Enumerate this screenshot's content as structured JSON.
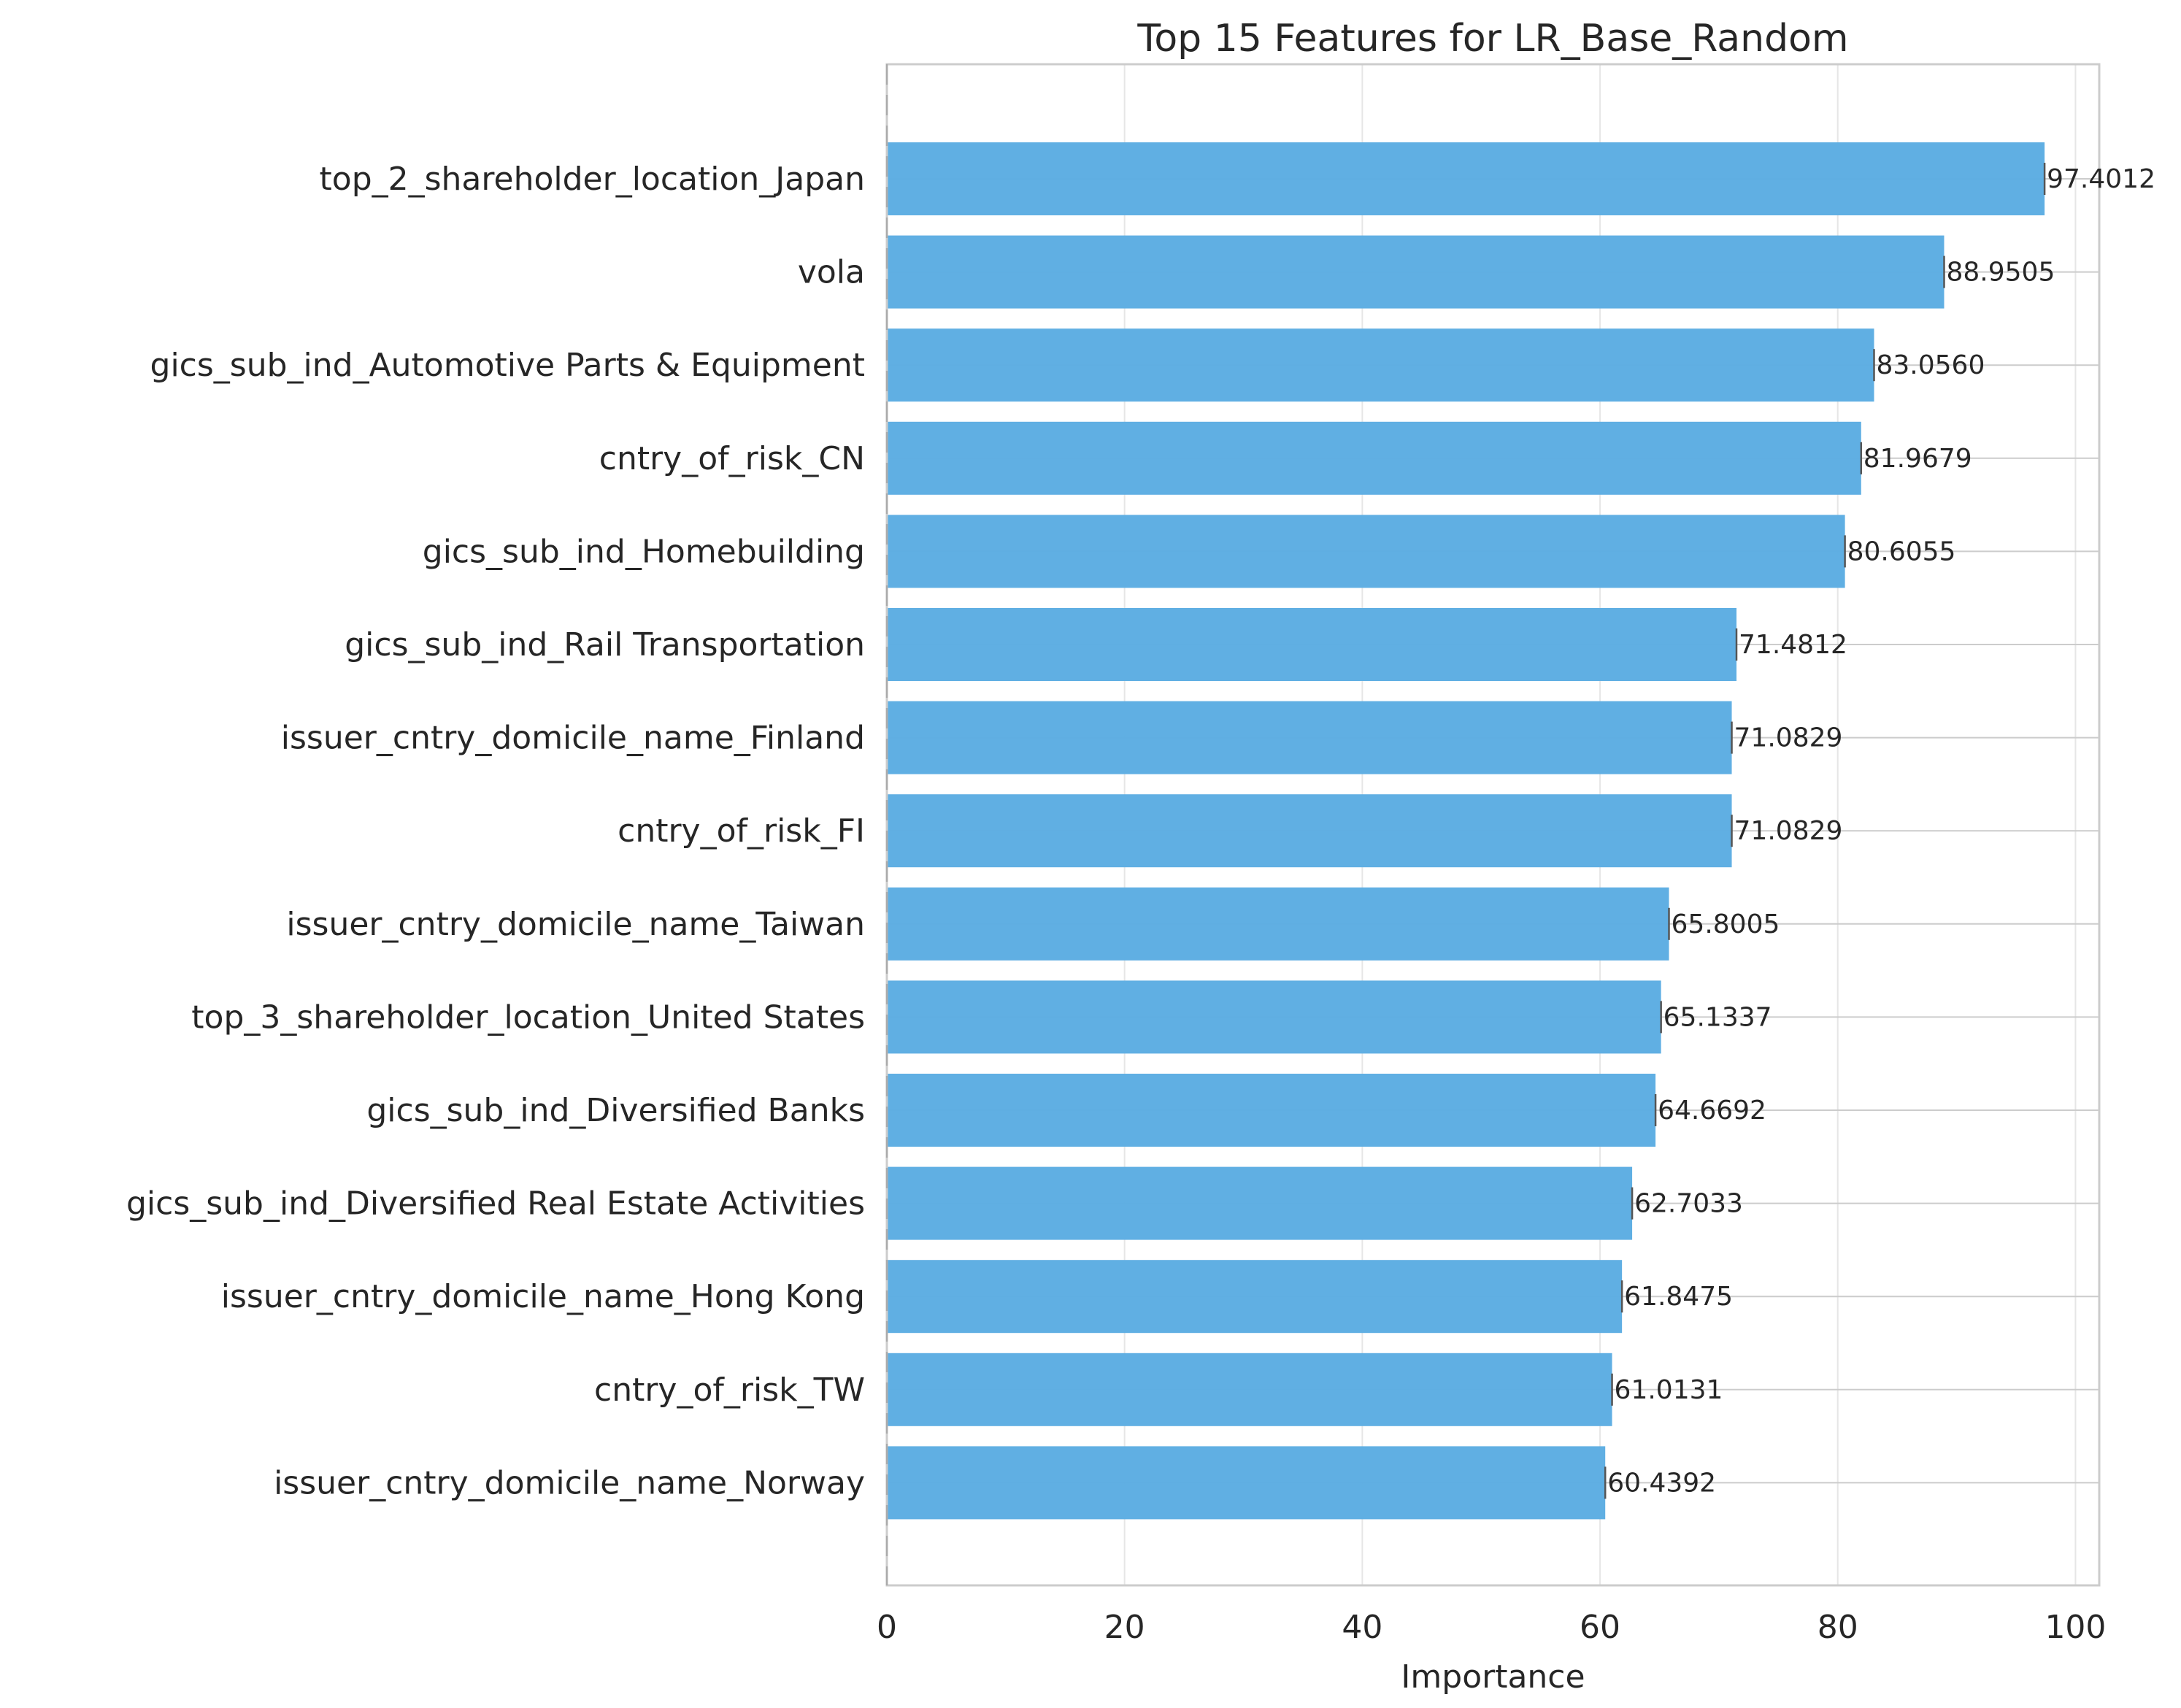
{
  "chart_data": {
    "type": "bar",
    "orientation": "horizontal",
    "title": "Top 15 Features for LR_Base_Random",
    "xlabel": "Importance",
    "ylabel": "",
    "xlim": [
      0,
      102
    ],
    "xticks": [
      0,
      20,
      40,
      60,
      80,
      100
    ],
    "grid": true,
    "bar_color": "#5DADE2",
    "categories": [
      "top_2_shareholder_location_Japan",
      "vola",
      "gics_sub_ind_Automotive Parts & Equipment",
      "cntry_of_risk_CN",
      "gics_sub_ind_Homebuilding",
      "gics_sub_ind_Rail Transportation",
      "issuer_cntry_domicile_name_Finland",
      "cntry_of_risk_FI",
      "issuer_cntry_domicile_name_Taiwan",
      "top_3_shareholder_location_United States",
      "gics_sub_ind_Diversified Banks",
      "gics_sub_ind_Diversified Real Estate Activities",
      "issuer_cntry_domicile_name_Hong Kong",
      "cntry_of_risk_TW",
      "issuer_cntry_domicile_name_Norway"
    ],
    "values": [
      97.4012,
      88.9505,
      83.056,
      81.9679,
      80.6055,
      71.4812,
      71.0829,
      71.0829,
      65.8005,
      65.1337,
      64.6692,
      62.7033,
      61.8475,
      61.0131,
      60.4392
    ],
    "value_labels": [
      "97.4012",
      "88.9505",
      "83.0560",
      "81.9679",
      "80.6055",
      "71.4812",
      "71.0829",
      "71.0829",
      "65.8005",
      "65.1337",
      "64.6692",
      "62.7033",
      "61.8475",
      "61.0131",
      "60.4392"
    ]
  }
}
